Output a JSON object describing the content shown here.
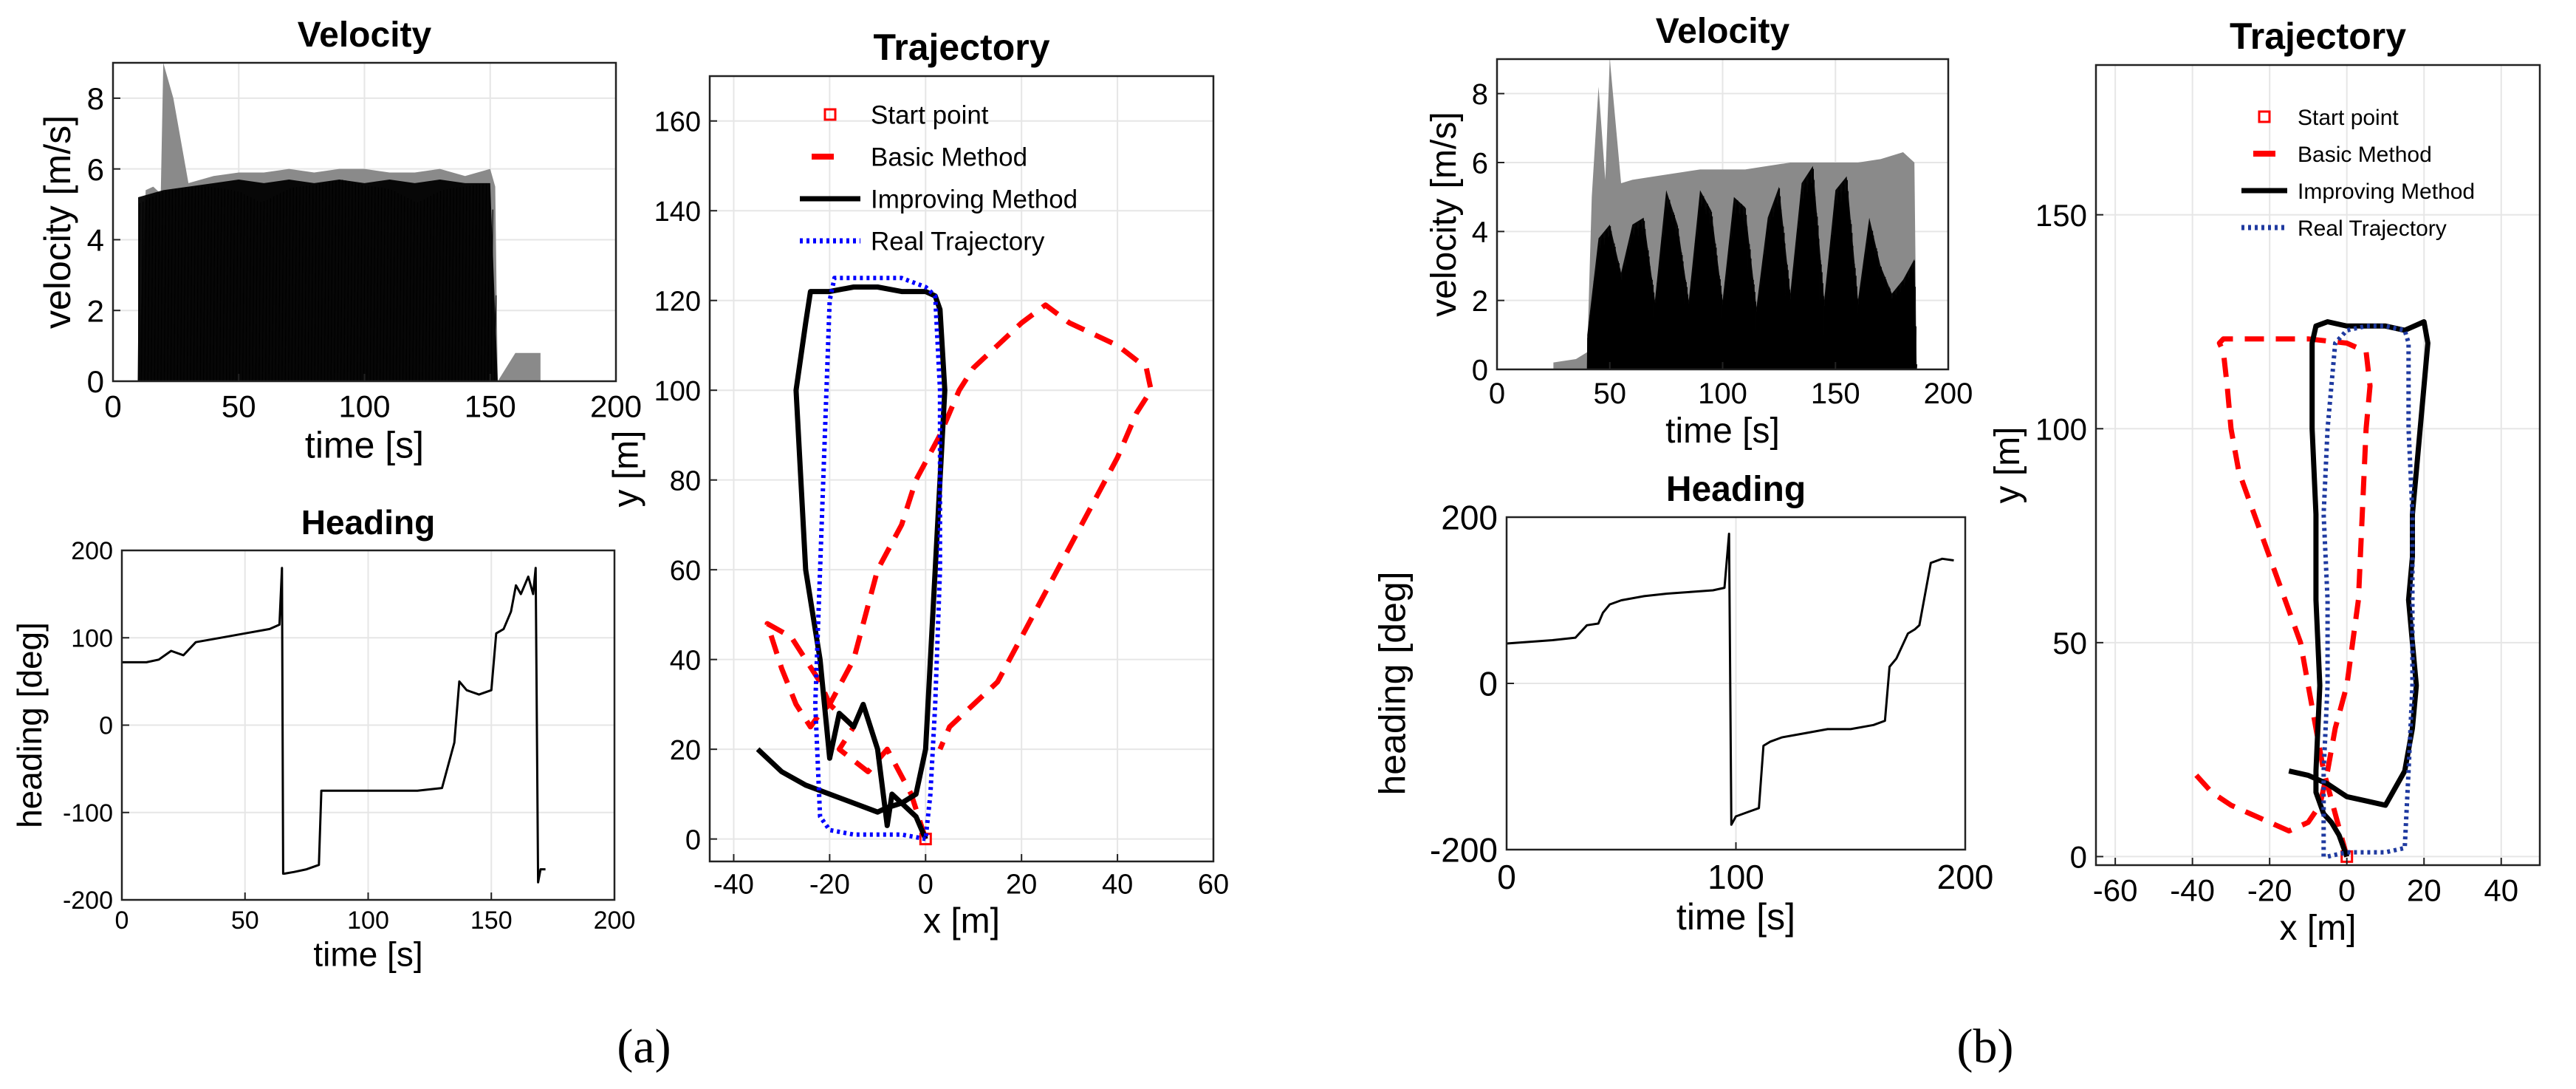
{
  "figure_labels": {
    "a": "(a)",
    "b": "(b)"
  },
  "chart_data": [
    {
      "id": "a-velocity",
      "type": "area",
      "title": "Velocity",
      "xlabel": "time [s]",
      "ylabel": "velocity [m/s]",
      "xlim": [
        0,
        200
      ],
      "ylim": [
        0,
        9
      ],
      "xticks": [
        0,
        50,
        100,
        150,
        200
      ],
      "yticks": [
        0,
        2,
        4,
        6,
        8
      ],
      "series": [
        {
          "name": "velocity (gray envelope)",
          "color": "#8a8a8a",
          "x": [
            10,
            13,
            16,
            19,
            20,
            24,
            30,
            40,
            50,
            60,
            70,
            80,
            90,
            100,
            110,
            120,
            130,
            140,
            150,
            152,
            153,
            160,
            170
          ],
          "values": [
            0,
            5.4,
            5.5,
            5.3,
            9,
            8,
            5.6,
            5.8,
            5.9,
            5.9,
            6.0,
            5.9,
            6.0,
            6.0,
            5.9,
            5.9,
            6.0,
            5.8,
            6.0,
            5.5,
            0,
            0.8,
            0.8
          ]
        },
        {
          "name": "velocity (black oscillation)",
          "color": "#000000",
          "x": [
            10,
            20,
            30,
            40,
            50,
            60,
            70,
            80,
            90,
            100,
            110,
            120,
            130,
            140,
            150,
            153
          ],
          "values": [
            5.2,
            5.4,
            5.5,
            5.6,
            5.7,
            5.6,
            5.7,
            5.6,
            5.7,
            5.6,
            5.7,
            5.6,
            5.7,
            5.6,
            5.6,
            0
          ]
        }
      ]
    },
    {
      "id": "a-heading",
      "type": "line",
      "title": "Heading",
      "xlabel": "time [s]",
      "ylabel": "heading [deg]",
      "xlim": [
        0,
        200
      ],
      "ylim": [
        -200,
        200
      ],
      "xticks": [
        0,
        50,
        100,
        150,
        200
      ],
      "yticks": [
        -200,
        -100,
        0,
        100,
        200
      ],
      "series": [
        {
          "name": "heading",
          "color": "#000000",
          "x": [
            0,
            10,
            15,
            20,
            25,
            30,
            40,
            50,
            60,
            64,
            65,
            65.5,
            66,
            70,
            75,
            80,
            81,
            85,
            100,
            120,
            130,
            135,
            137,
            140,
            145,
            150,
            152,
            155,
            158,
            160,
            162,
            165,
            167,
            168,
            169,
            170,
            172
          ],
          "values": [
            72,
            72,
            75,
            85,
            80,
            95,
            100,
            105,
            110,
            115,
            180,
            -170,
            -170,
            -168,
            -165,
            -160,
            -75,
            -75,
            -75,
            -75,
            -72,
            -20,
            50,
            40,
            35,
            40,
            105,
            110,
            130,
            160,
            150,
            170,
            150,
            180,
            -180,
            -165,
            -165
          ]
        }
      ]
    },
    {
      "id": "a-trajectory",
      "type": "line",
      "title": "Trajectory",
      "xlabel": "x [m]",
      "ylabel": "y [m]",
      "xlim": [
        -45,
        60
      ],
      "ylim": [
        -5,
        170
      ],
      "xticks": [
        -40,
        -20,
        0,
        20,
        40,
        60
      ],
      "yticks": [
        0,
        20,
        40,
        60,
        80,
        100,
        120,
        140,
        160
      ],
      "legend": [
        "Start point",
        "Basic Method",
        "Improving Method",
        "Real Trajectory"
      ],
      "series": [
        {
          "name": "Start point",
          "style": "marker",
          "color": "#ff0000",
          "x": [
            0
          ],
          "values": [
            0
          ]
        },
        {
          "name": "Basic Method",
          "style": "dashed",
          "color": "#ff0000",
          "x": [
            0,
            -3,
            -8,
            -12,
            -18,
            -15,
            -20,
            -22,
            -25,
            -28,
            -33,
            -30,
            -27,
            -24,
            -22,
            -20,
            -15,
            -12,
            -10,
            -5,
            -2,
            3,
            7,
            10,
            15,
            20,
            25,
            30,
            40,
            46,
            47,
            44,
            40,
            35,
            30,
            25,
            20,
            15,
            10,
            5,
            3
          ],
          "values": [
            0,
            10,
            20,
            15,
            20,
            25,
            30,
            35,
            40,
            45,
            48,
            38,
            30,
            25,
            28,
            30,
            40,
            52,
            60,
            70,
            80,
            90,
            100,
            105,
            110,
            115,
            119,
            115,
            110,
            105,
            100,
            95,
            85,
            75,
            65,
            55,
            45,
            35,
            30,
            25,
            20
          ]
        },
        {
          "name": "Improving Method",
          "style": "solid",
          "color": "#000000",
          "x": [
            0,
            -2,
            -5,
            -7,
            -8,
            -10,
            -13,
            -15,
            -18,
            -20,
            -22,
            -25,
            -26,
            -27,
            -25,
            -24,
            -20,
            -15,
            -10,
            -5,
            0,
            2,
            3,
            4,
            3,
            2,
            1,
            0,
            -2,
            -5,
            -8,
            -10,
            -15,
            -20,
            -25,
            -30,
            -35
          ],
          "values": [
            0,
            5,
            8,
            10,
            3,
            20,
            30,
            25,
            28,
            18,
            40,
            60,
            80,
            100,
            115,
            122,
            122,
            123,
            123,
            122,
            122,
            121,
            118,
            100,
            80,
            60,
            40,
            20,
            10,
            8,
            7,
            6,
            8,
            10,
            12,
            15,
            20
          ]
        },
        {
          "name": "Real Trajectory",
          "style": "dotted",
          "color": "#0000ff",
          "x": [
            0,
            -5,
            -10,
            -15,
            -20,
            -22,
            -23,
            -22,
            -21,
            -20,
            -19,
            -15,
            -10,
            -5,
            0,
            2,
            3,
            3,
            2,
            1,
            0
          ],
          "values": [
            0,
            1,
            1,
            1,
            2,
            5,
            30,
            60,
            90,
            120,
            125,
            125,
            125,
            125,
            123,
            121,
            100,
            60,
            30,
            10,
            0
          ]
        }
      ]
    },
    {
      "id": "b-velocity",
      "type": "area",
      "title": "Velocity",
      "xlabel": "time [s]",
      "ylabel": "velocity [m/s]",
      "xlim": [
        0,
        200
      ],
      "ylim": [
        0,
        9
      ],
      "xticks": [
        0,
        50,
        100,
        150,
        200
      ],
      "yticks": [
        0,
        2,
        4,
        6,
        8
      ],
      "series": [
        {
          "name": "velocity (gray envelope)",
          "color": "#8a8a8a",
          "x": [
            25,
            35,
            40,
            42,
            45,
            48,
            50,
            55,
            60,
            70,
            80,
            90,
            100,
            110,
            120,
            130,
            140,
            150,
            160,
            170,
            180,
            185,
            186
          ],
          "values": [
            0.2,
            0.3,
            0.5,
            5.0,
            8.2,
            5.5,
            9,
            5.4,
            5.5,
            5.6,
            5.7,
            5.8,
            5.8,
            5.8,
            5.9,
            6.0,
            6.0,
            6.0,
            6.0,
            6.1,
            6.3,
            6.0,
            0
          ]
        },
        {
          "name": "velocity (black envelope)",
          "color": "#000000",
          "x": [
            40,
            45,
            50,
            55,
            60,
            65,
            70,
            75,
            80,
            85,
            90,
            95,
            100,
            105,
            110,
            115,
            120,
            125,
            130,
            135,
            140,
            145,
            150,
            155,
            160,
            165,
            170,
            175,
            180,
            185,
            186
          ],
          "values": [
            1.0,
            3.8,
            4.2,
            2.8,
            4.2,
            4.4,
            2.0,
            5.2,
            4.2,
            2.0,
            5.2,
            4.6,
            2.0,
            5.0,
            4.7,
            1.8,
            4.4,
            5.3,
            2.2,
            5.4,
            5.9,
            2.0,
            5.2,
            5.6,
            2.0,
            4.4,
            3.0,
            2.2,
            2.6,
            3.2,
            0
          ]
        }
      ]
    },
    {
      "id": "b-heading",
      "type": "line",
      "title": "Heading",
      "xlabel": "time [s]",
      "ylabel": "heading [deg]",
      "xlim": [
        0,
        200
      ],
      "ylim": [
        -200,
        200
      ],
      "xticks": [
        0,
        100,
        200
      ],
      "yticks": [
        -200,
        0,
        200
      ],
      "series": [
        {
          "name": "heading",
          "color": "#000000",
          "x": [
            0,
            10,
            20,
            30,
            35,
            40,
            42,
            45,
            50,
            60,
            70,
            80,
            90,
            95,
            97,
            98,
            99,
            100,
            105,
            110,
            112,
            115,
            120,
            130,
            140,
            150,
            160,
            165,
            167,
            170,
            175,
            178,
            180,
            185,
            190,
            195
          ],
          "values": [
            48,
            50,
            52,
            55,
            70,
            72,
            85,
            95,
            100,
            105,
            108,
            110,
            112,
            115,
            180,
            -170,
            -165,
            -160,
            -155,
            -150,
            -75,
            -70,
            -65,
            -60,
            -55,
            -55,
            -50,
            -45,
            20,
            30,
            60,
            65,
            70,
            145,
            150,
            148
          ]
        }
      ]
    },
    {
      "id": "b-trajectory",
      "type": "line",
      "title": "Trajectory",
      "xlabel": "x [m]",
      "ylabel": "y [m]",
      "xlim": [
        -65,
        50
      ],
      "ylim": [
        -2,
        185
      ],
      "xticks": [
        -60,
        -40,
        -20,
        0,
        20,
        40
      ],
      "yticks": [
        0,
        50,
        100,
        150
      ],
      "legend": [
        "Start point",
        "Basic Method",
        "Improving Method",
        "Real Trajectory"
      ],
      "series": [
        {
          "name": "Start point",
          "style": "marker",
          "color": "#ff0000",
          "x": [
            0
          ],
          "values": [
            0
          ]
        },
        {
          "name": "Basic Method",
          "style": "dashed",
          "color": "#ff0000",
          "x": [
            0,
            -3,
            -6,
            -8,
            -10,
            -12,
            -16,
            -20,
            -24,
            -28,
            -30,
            -31,
            -32,
            -33,
            -32,
            -30,
            -28,
            -20,
            -10,
            0,
            5,
            6,
            5,
            4,
            3,
            0,
            -3,
            -5,
            -7,
            -10,
            -15,
            -20,
            -25,
            -30,
            -35,
            -40
          ],
          "values": [
            0,
            10,
            20,
            30,
            40,
            50,
            60,
            70,
            80,
            90,
            100,
            110,
            118,
            120,
            121,
            121,
            121,
            121,
            121,
            120,
            118,
            110,
            100,
            80,
            60,
            40,
            30,
            20,
            12,
            8,
            6,
            8,
            10,
            12,
            15,
            20
          ]
        },
        {
          "name": "Improving Method",
          "style": "solid",
          "color": "#000000",
          "x": [
            0,
            -2,
            -4,
            -6,
            -8,
            -8,
            -7,
            -8,
            -8,
            -9,
            -9,
            -8,
            -5,
            0,
            5,
            10,
            15,
            20,
            21,
            20,
            19,
            18,
            17,
            17,
            16,
            17,
            18,
            17,
            15,
            10,
            5,
            0,
            -5,
            -10,
            -15
          ],
          "values": [
            0,
            5,
            8,
            10,
            15,
            20,
            40,
            60,
            80,
            100,
            120,
            124,
            125,
            124,
            124,
            124,
            123,
            125,
            120,
            110,
            100,
            90,
            80,
            70,
            60,
            50,
            40,
            30,
            20,
            12,
            13,
            14,
            17,
            19,
            20
          ]
        },
        {
          "name": "Real Trajectory",
          "style": "dotted",
          "color": "#1f3aa0",
          "x": [
            -6,
            -6,
            -5,
            -5,
            -6,
            -5,
            -3,
            0,
            5,
            10,
            15,
            16,
            16,
            17,
            17,
            17,
            16,
            15,
            10,
            5,
            0,
            -5
          ],
          "values": [
            0,
            20,
            40,
            60,
            80,
            100,
            120,
            123,
            124,
            124,
            123,
            120,
            100,
            80,
            60,
            40,
            20,
            2,
            1,
            1,
            1,
            0
          ]
        }
      ]
    }
  ]
}
